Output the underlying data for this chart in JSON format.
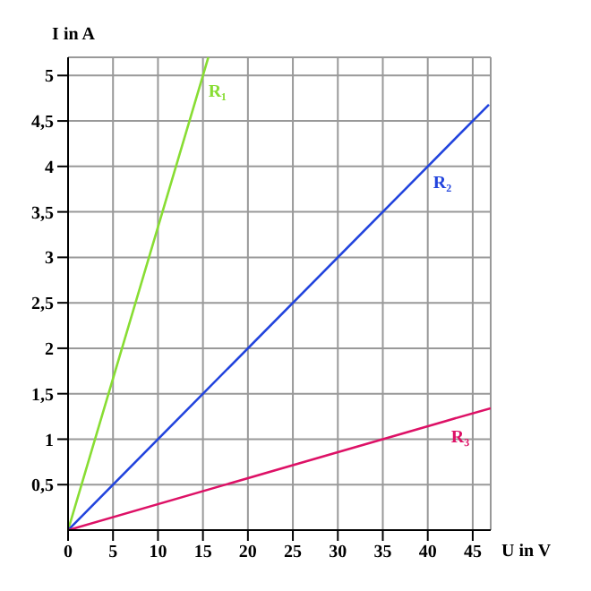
{
  "chart_data": {
    "type": "line",
    "xlabel": "U in V",
    "ylabel": "I in A",
    "xlim": [
      0,
      47
    ],
    "ylim": [
      0,
      5.2
    ],
    "xticks": [
      0,
      5,
      10,
      15,
      20,
      25,
      30,
      35,
      40,
      45
    ],
    "yticks": [
      {
        "value": 0.5,
        "label": "0,5"
      },
      1,
      {
        "value": 1.5,
        "label": "1,5"
      },
      2,
      {
        "value": 2.5,
        "label": "2,5"
      },
      3,
      {
        "value": 3.5,
        "label": "3,5"
      },
      4,
      {
        "value": 4.5,
        "label": "4,5"
      },
      5
    ],
    "grid": true,
    "legend": false,
    "marker": "none",
    "line_style": "solid",
    "series": [
      {
        "name": "R₁",
        "color": "#88dd33",
        "x": [
          0,
          15,
          15.6
        ],
        "values": [
          0,
          5,
          5.2
        ]
      },
      {
        "name": "R₂",
        "color": "#2244dd",
        "x": [
          0,
          40,
          46.8
        ],
        "values": [
          0,
          4,
          4.68
        ]
      },
      {
        "name": "R₃",
        "color": "#dd1166",
        "x": [
          0,
          42,
          47
        ],
        "values": [
          0,
          1.2,
          1.34
        ]
      }
    ]
  }
}
